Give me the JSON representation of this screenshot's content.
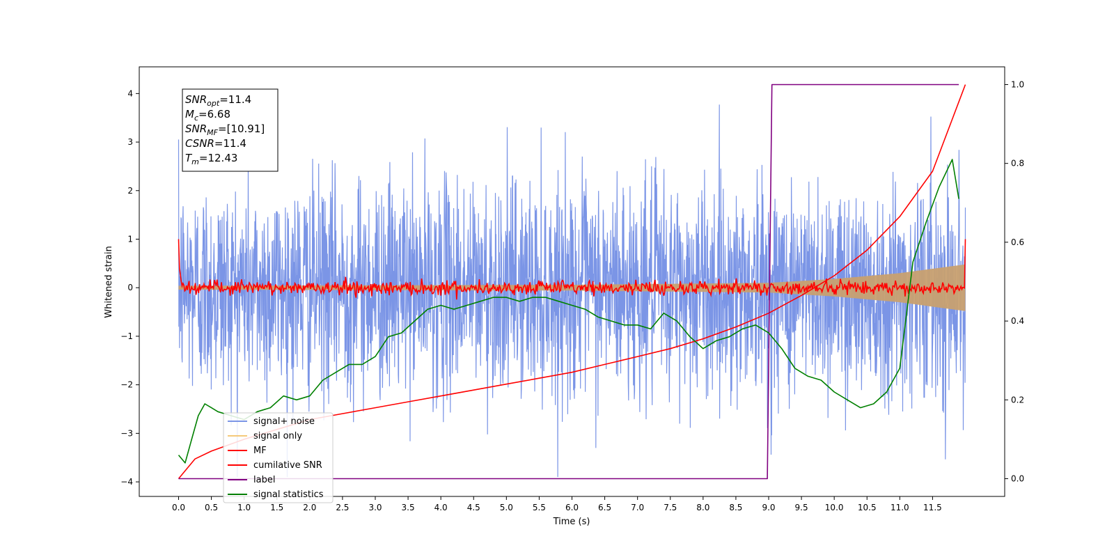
{
  "chart_data": {
    "type": "line",
    "xlabel": "Time (s)",
    "ylabel": "Whitened strain",
    "xlim": [
      -0.6,
      12.6
    ],
    "ylim": [
      -4.3,
      4.55
    ],
    "y2lim": [
      -0.045,
      1.045
    ],
    "x_ticks": [
      "0.0",
      "0.5",
      "1.0",
      "1.5",
      "2.0",
      "2.5",
      "3.0",
      "3.5",
      "4.0",
      "4.5",
      "5.0",
      "5.5",
      "6.0",
      "6.5",
      "7.0",
      "7.5",
      "8.0",
      "8.5",
      "9.0",
      "9.5",
      "10.0",
      "10.5",
      "11.0",
      "11.5"
    ],
    "y_ticks": [
      "−4",
      "−3",
      "−2",
      "−1",
      "0",
      "1",
      "2",
      "3",
      "4"
    ],
    "y2_ticks": [
      "0.0",
      "0.2",
      "0.4",
      "0.6",
      "0.8",
      "1.0"
    ],
    "annotation": {
      "lines": [
        {
          "symbol": "SNR",
          "sub": "opt",
          "value": "=11.4"
        },
        {
          "symbol": "M",
          "sub": "c",
          "value": "=6.68"
        },
        {
          "symbol": "SNR",
          "sub": "MF",
          "value": "=[10.91]"
        },
        {
          "symbol": "CSNR",
          "sub": "",
          "value": "=11.4"
        },
        {
          "symbol": "T",
          "sub": "m",
          "value": "=12.43"
        }
      ]
    },
    "legend": {
      "position": "lower-left",
      "items": [
        {
          "label": "signal+ noise",
          "color": "#7b95e6"
        },
        {
          "label": "signal only",
          "color": "#f5c97a"
        },
        {
          "label": "MF",
          "color": "#ff0000"
        },
        {
          "label": "cumilative SNR",
          "color": "#ff0000"
        },
        {
          "label": "label",
          "color": "#800080"
        },
        {
          "label": "signal statistics",
          "color": "#008000"
        }
      ]
    },
    "series": [
      {
        "name": "signal+ noise",
        "color": "#7b95e6",
        "axis": "left",
        "style": "noise",
        "x_range": [
          0.0,
          12.0
        ],
        "sigma": 1.1,
        "max": 4.0,
        "min": -3.9
      },
      {
        "name": "signal only",
        "color": "#c8a070",
        "axis": "left",
        "style": "envelope",
        "envelope": [
          [
            0.0,
            0.04
          ],
          [
            6.0,
            0.06
          ],
          [
            9.0,
            0.1
          ],
          [
            10.0,
            0.18
          ],
          [
            11.0,
            0.3
          ],
          [
            12.0,
            0.48
          ]
        ]
      },
      {
        "name": "MF",
        "color": "#ff0000",
        "axis": "left",
        "style": "noise-small",
        "start_value": 1.0,
        "end_value": 1.0,
        "amplitude": 0.1,
        "x_range": [
          0.0,
          12.0
        ]
      },
      {
        "name": "cumilative SNR",
        "color": "#ff0000",
        "axis": "right",
        "x": [
          0.0,
          0.25,
          0.5,
          1.0,
          1.5,
          2.0,
          2.5,
          3.0,
          3.5,
          4.0,
          4.5,
          5.0,
          5.5,
          6.0,
          6.5,
          7.0,
          7.5,
          8.0,
          8.5,
          9.0,
          9.5,
          10.0,
          10.5,
          11.0,
          11.5,
          12.0
        ],
        "y": [
          0.0,
          0.05,
          0.07,
          0.1,
          0.125,
          0.15,
          0.165,
          0.18,
          0.195,
          0.21,
          0.225,
          0.24,
          0.255,
          0.27,
          0.29,
          0.31,
          0.33,
          0.355,
          0.385,
          0.42,
          0.465,
          0.515,
          0.58,
          0.665,
          0.78,
          1.0
        ]
      },
      {
        "name": "label",
        "color": "#800080",
        "axis": "right",
        "x": [
          0.0,
          8.98,
          9.05,
          11.9
        ],
        "y": [
          0.0,
          0.0,
          1.0,
          1.0
        ]
      },
      {
        "name": "signal statistics",
        "color": "#008000",
        "axis": "right",
        "x": [
          0.0,
          0.1,
          0.2,
          0.3,
          0.4,
          0.5,
          0.6,
          0.8,
          1.0,
          1.2,
          1.4,
          1.6,
          1.8,
          2.0,
          2.2,
          2.4,
          2.6,
          2.8,
          3.0,
          3.2,
          3.4,
          3.6,
          3.8,
          4.0,
          4.2,
          4.4,
          4.6,
          4.8,
          5.0,
          5.2,
          5.4,
          5.6,
          5.8,
          6.0,
          6.2,
          6.4,
          6.6,
          6.8,
          7.0,
          7.2,
          7.4,
          7.6,
          7.8,
          8.0,
          8.2,
          8.4,
          8.6,
          8.8,
          9.0,
          9.2,
          9.4,
          9.6,
          9.8,
          10.0,
          10.2,
          10.4,
          10.6,
          10.8,
          11.0,
          11.2,
          11.4,
          11.6,
          11.8,
          11.9
        ],
        "y": [
          0.06,
          0.04,
          0.1,
          0.16,
          0.19,
          0.18,
          0.17,
          0.16,
          0.15,
          0.17,
          0.18,
          0.21,
          0.2,
          0.21,
          0.25,
          0.27,
          0.29,
          0.29,
          0.31,
          0.36,
          0.37,
          0.4,
          0.43,
          0.44,
          0.43,
          0.44,
          0.45,
          0.46,
          0.46,
          0.45,
          0.46,
          0.46,
          0.45,
          0.44,
          0.43,
          0.41,
          0.4,
          0.39,
          0.39,
          0.38,
          0.42,
          0.4,
          0.36,
          0.33,
          0.35,
          0.36,
          0.38,
          0.39,
          0.37,
          0.33,
          0.28,
          0.26,
          0.25,
          0.22,
          0.2,
          0.18,
          0.19,
          0.22,
          0.28,
          0.55,
          0.65,
          0.74,
          0.81,
          0.71
        ]
      }
    ]
  }
}
